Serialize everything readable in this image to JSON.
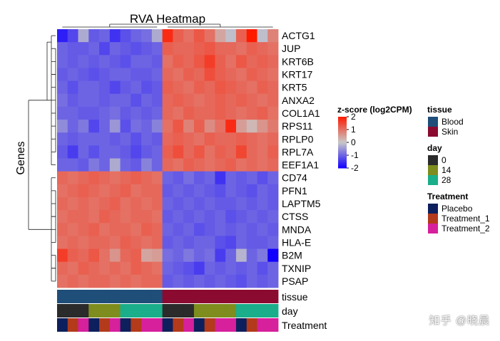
{
  "chart_data": {
    "type": "heatmap",
    "title": "RVA Heatmap",
    "ylabel": "Genes",
    "rows": [
      "ACTG1",
      "JUP",
      "KRT6B",
      "KRT17",
      "KRT5",
      "ANXA2",
      "COL1A1",
      "RPS11",
      "RPLP0",
      "RPL7A",
      "EEF1A1",
      "CD74",
      "PFN1",
      "LAPTM5",
      "CTSS",
      "MNDA",
      "HLA-E",
      "B2M",
      "TXNIP",
      "PSAP"
    ],
    "values": [
      [
        -1.7,
        -1.3,
        -0.3,
        -1.1,
        -1.0,
        -1.5,
        -1.2,
        -1.0,
        -0.9,
        -0.3,
        1.8,
        1.2,
        1.0,
        1.3,
        1.0,
        0.4,
        -0.1,
        1.2,
        2.0,
        -0.1,
        0.8
      ],
      [
        -1.0,
        -1.1,
        -1.1,
        -1.0,
        -1.3,
        -1.0,
        -1.1,
        -1.2,
        -1.1,
        -1.0,
        1.2,
        1.1,
        1.1,
        1.2,
        1.3,
        1.1,
        1.1,
        1.0,
        1.2,
        1.1,
        1.0
      ],
      [
        -1.0,
        -1.1,
        -1.0,
        -1.1,
        -1.0,
        -1.1,
        -1.2,
        -1.0,
        -1.0,
        -1.1,
        1.0,
        1.2,
        1.1,
        1.3,
        1.6,
        1.2,
        1.0,
        1.3,
        1.1,
        1.2,
        1.1
      ],
      [
        -1.1,
        -1.0,
        -1.1,
        -1.2,
        -1.1,
        -1.0,
        -1.0,
        -1.1,
        -1.1,
        -1.0,
        1.1,
        1.0,
        1.2,
        1.1,
        1.4,
        1.2,
        1.1,
        1.0,
        1.2,
        1.1,
        1.0
      ],
      [
        -1.0,
        -1.2,
        -1.0,
        -1.0,
        -1.1,
        -1.3,
        -1.1,
        -1.0,
        -1.2,
        -1.1,
        1.2,
        1.1,
        1.0,
        1.2,
        1.1,
        1.3,
        1.2,
        1.1,
        1.0,
        1.2,
        1.1
      ],
      [
        -0.9,
        -1.1,
        -1.0,
        -1.0,
        -1.1,
        -1.0,
        -1.0,
        -1.2,
        -1.0,
        -1.1,
        1.1,
        1.2,
        1.1,
        1.0,
        1.1,
        1.2,
        1.1,
        1.2,
        1.1,
        1.0,
        1.1
      ],
      [
        -1.0,
        -1.0,
        -1.1,
        -1.1,
        -1.0,
        -0.9,
        -1.1,
        -1.0,
        -1.1,
        -1.0,
        1.1,
        1.0,
        1.2,
        1.1,
        1.1,
        1.2,
        1.1,
        1.0,
        1.1,
        1.2,
        1.0
      ],
      [
        -0.6,
        -1.0,
        -0.8,
        -1.3,
        -1.0,
        -0.5,
        -1.2,
        -0.9,
        -1.0,
        -0.7,
        1.0,
        1.3,
        0.8,
        1.2,
        0.7,
        1.0,
        1.8,
        0.5,
        0.2,
        0.6,
        0.9
      ],
      [
        -1.0,
        -1.1,
        -1.0,
        -1.0,
        -1.0,
        -1.1,
        -1.0,
        -1.2,
        -1.0,
        -1.1,
        1.1,
        1.2,
        1.1,
        1.0,
        1.2,
        1.1,
        1.1,
        1.2,
        1.1,
        1.0,
        1.1
      ],
      [
        -1.1,
        -1.4,
        -1.0,
        -1.2,
        -1.0,
        -1.0,
        -1.1,
        -1.3,
        -1.1,
        -1.0,
        1.2,
        1.4,
        1.1,
        1.3,
        1.0,
        1.2,
        1.1,
        1.5,
        1.1,
        1.0,
        1.2
      ],
      [
        -1.0,
        -1.0,
        -1.1,
        -0.8,
        -1.0,
        -0.3,
        -1.0,
        -1.1,
        -0.7,
        -1.0,
        1.1,
        1.0,
        1.2,
        1.1,
        1.0,
        1.1,
        1.2,
        1.0,
        1.1,
        1.0,
        1.1
      ],
      [
        1.1,
        1.0,
        1.1,
        1.2,
        1.1,
        1.0,
        1.1,
        1.2,
        1.1,
        1.0,
        -1.0,
        -1.1,
        -0.9,
        -1.1,
        -1.0,
        -1.5,
        -1.0,
        -1.1,
        -1.0,
        -1.2,
        -1.0
      ],
      [
        1.0,
        1.1,
        1.2,
        1.1,
        1.0,
        1.1,
        1.2,
        1.0,
        1.1,
        1.1,
        -1.1,
        -1.0,
        -1.1,
        -1.0,
        -1.1,
        -1.2,
        -1.0,
        -1.1,
        -1.2,
        -1.0,
        -1.1
      ],
      [
        1.1,
        1.0,
        1.1,
        1.0,
        1.1,
        1.2,
        1.0,
        1.1,
        1.0,
        1.1,
        -1.0,
        -1.1,
        -1.0,
        -1.1,
        -1.0,
        -1.1,
        -1.1,
        -1.0,
        -1.1,
        -1.0,
        -1.1
      ],
      [
        1.0,
        1.1,
        1.1,
        1.0,
        1.2,
        1.1,
        1.0,
        1.1,
        1.1,
        1.0,
        -1.1,
        -1.0,
        -1.1,
        -1.0,
        -1.1,
        -1.0,
        -1.2,
        -1.1,
        -1.0,
        -1.1,
        -1.0
      ],
      [
        1.1,
        1.0,
        1.1,
        1.2,
        1.0,
        1.1,
        1.1,
        1.0,
        1.2,
        1.1,
        -1.0,
        -1.1,
        -1.0,
        -1.2,
        -1.1,
        -1.0,
        -1.1,
        -1.0,
        -1.1,
        -1.0,
        -1.1
      ],
      [
        1.0,
        1.1,
        1.0,
        1.1,
        1.1,
        1.0,
        1.2,
        1.1,
        1.0,
        1.1,
        -1.1,
        -1.0,
        -1.1,
        -1.0,
        -1.0,
        -1.2,
        -1.3,
        -1.0,
        -1.1,
        -1.1,
        -1.0
      ],
      [
        1.6,
        1.2,
        1.1,
        1.3,
        1.0,
        0.6,
        1.1,
        1.2,
        0.4,
        0.5,
        -0.9,
        -1.0,
        -0.8,
        -1.0,
        -0.9,
        -1.4,
        -1.0,
        -0.2,
        -1.0,
        -0.8,
        -2.0
      ],
      [
        1.1,
        1.0,
        1.2,
        1.1,
        1.0,
        1.1,
        1.0,
        1.2,
        1.1,
        1.0,
        -1.0,
        -1.1,
        -1.2,
        -1.4,
        -1.0,
        -1.1,
        -1.0,
        -1.1,
        -1.0,
        -1.2,
        -1.0
      ],
      [
        1.0,
        1.1,
        1.0,
        1.1,
        1.1,
        1.0,
        1.1,
        1.0,
        1.1,
        1.1,
        -1.1,
        -1.0,
        -1.1,
        -1.0,
        -1.1,
        -1.0,
        -1.1,
        -1.2,
        -1.0,
        -1.1,
        -1.0
      ]
    ],
    "colorscale": {
      "min": -2,
      "max": 2,
      "low": "#1200ff",
      "mid": "#c8c8c8",
      "high": "#ff1a00"
    },
    "annotations": {
      "tissue": [
        "Blood",
        "Blood",
        "Blood",
        "Blood",
        "Blood",
        "Blood",
        "Blood",
        "Blood",
        "Blood",
        "Blood",
        "Skin",
        "Skin",
        "Skin",
        "Skin",
        "Skin",
        "Skin",
        "Skin",
        "Skin",
        "Skin",
        "Skin",
        "Skin"
      ],
      "day": [
        "0",
        "0",
        "0",
        "14",
        "14",
        "14",
        "28",
        "28",
        "28",
        "28",
        "0",
        "0",
        "0",
        "14",
        "14",
        "14",
        "14",
        "28",
        "28",
        "28",
        "28"
      ],
      "Treatment": [
        "Placebo",
        "Treatment_1",
        "Treatment_2",
        "Placebo",
        "Treatment_1",
        "Treatment_2",
        "Placebo",
        "Treatment_1",
        "Treatment_2",
        "Treatment_2",
        "Placebo",
        "Treatment_1",
        "Treatment_2",
        "Placebo",
        "Treatment_1",
        "Treatment_2",
        "Treatment_2",
        "Placebo",
        "Treatment_1",
        "Treatment_2",
        "Treatment_2"
      ]
    },
    "annotation_labels": [
      "tissue",
      "day",
      "Treatment"
    ],
    "colorbar": {
      "title": "z-score (log2CPM)",
      "ticks": [
        "2",
        "1",
        "0",
        "-1",
        "-2"
      ],
      "tick_values": [
        2,
        1,
        0,
        -1,
        -2
      ]
    },
    "legends": [
      {
        "title": "tissue",
        "items": [
          {
            "label": "Blood",
            "color": "#1f4e79"
          },
          {
            "label": "Skin",
            "color": "#8b0a30"
          }
        ]
      },
      {
        "title": "day",
        "items": [
          {
            "label": "0",
            "color": "#2b2b2b"
          },
          {
            "label": "14",
            "color": "#7f8c1e"
          },
          {
            "label": "28",
            "color": "#1aae8a"
          }
        ]
      },
      {
        "title": "Treatment",
        "items": [
          {
            "label": "Placebo",
            "color": "#0d1f5c"
          },
          {
            "label": "Treatment_1",
            "color": "#b33a1a"
          },
          {
            "label": "Treatment_2",
            "color": "#d6209c"
          }
        ]
      }
    ]
  },
  "watermark": "知乎 @晓晨"
}
